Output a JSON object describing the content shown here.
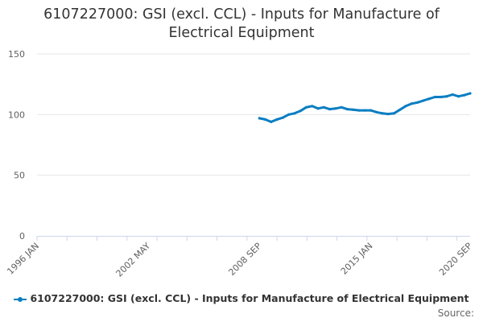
{
  "title": {
    "line1": "6107227000: GSI (excl. CCL) - Inputs for Manufacture of",
    "line2": "Electrical Equipment"
  },
  "credits": "Source:",
  "colors": {
    "series": "#0a7ec2",
    "grid": "#e6e6e6",
    "axis": "#ccd6eb"
  },
  "chart_data": {
    "type": "line",
    "title": "6107227000: GSI (excl. CCL) - Inputs for Manufacture of Electrical Equipment",
    "xlabel": "",
    "ylabel": "",
    "ylim": [
      0,
      150
    ],
    "yticks": [
      "0",
      "50",
      "100",
      "150"
    ],
    "xlim": [
      "1996-01",
      "2020-09"
    ],
    "xticks": [
      "1996 JAN",
      "2002 MAY",
      "2008 SEP",
      "2015 JAN",
      "2020 SEP"
    ],
    "grid": true,
    "legend_position": "bottom",
    "series": [
      {
        "name": "6107227000: GSI (excl. CCL) - Inputs for Manufacture of Electrical Equipment",
        "color": "#0a7ec2",
        "points": [
          [
            "2008-09",
            97
          ],
          [
            "2009-01",
            96
          ],
          [
            "2009-05",
            94
          ],
          [
            "2009-09",
            96
          ],
          [
            "2010-01",
            97.5
          ],
          [
            "2010-05",
            100
          ],
          [
            "2010-09",
            101
          ],
          [
            "2011-01",
            103
          ],
          [
            "2011-05",
            106
          ],
          [
            "2011-09",
            107
          ],
          [
            "2012-01",
            105
          ],
          [
            "2012-05",
            106
          ],
          [
            "2012-09",
            104.5
          ],
          [
            "2013-01",
            105
          ],
          [
            "2013-05",
            106
          ],
          [
            "2013-09",
            104.5
          ],
          [
            "2014-01",
            104
          ],
          [
            "2014-05",
            103.5
          ],
          [
            "2014-09",
            103.5
          ],
          [
            "2015-01",
            103.5
          ],
          [
            "2015-05",
            102
          ],
          [
            "2015-09",
            101
          ],
          [
            "2016-01",
            100.5
          ],
          [
            "2016-05",
            101
          ],
          [
            "2016-09",
            104
          ],
          [
            "2017-01",
            107
          ],
          [
            "2017-05",
            109
          ],
          [
            "2017-09",
            110
          ],
          [
            "2018-01",
            111.5
          ],
          [
            "2018-05",
            113
          ],
          [
            "2018-09",
            114.5
          ],
          [
            "2019-01",
            114.5
          ],
          [
            "2019-05",
            115
          ],
          [
            "2019-09",
            116.5
          ],
          [
            "2020-01",
            115
          ],
          [
            "2020-05",
            116
          ],
          [
            "2020-09",
            117.5
          ]
        ]
      }
    ]
  }
}
